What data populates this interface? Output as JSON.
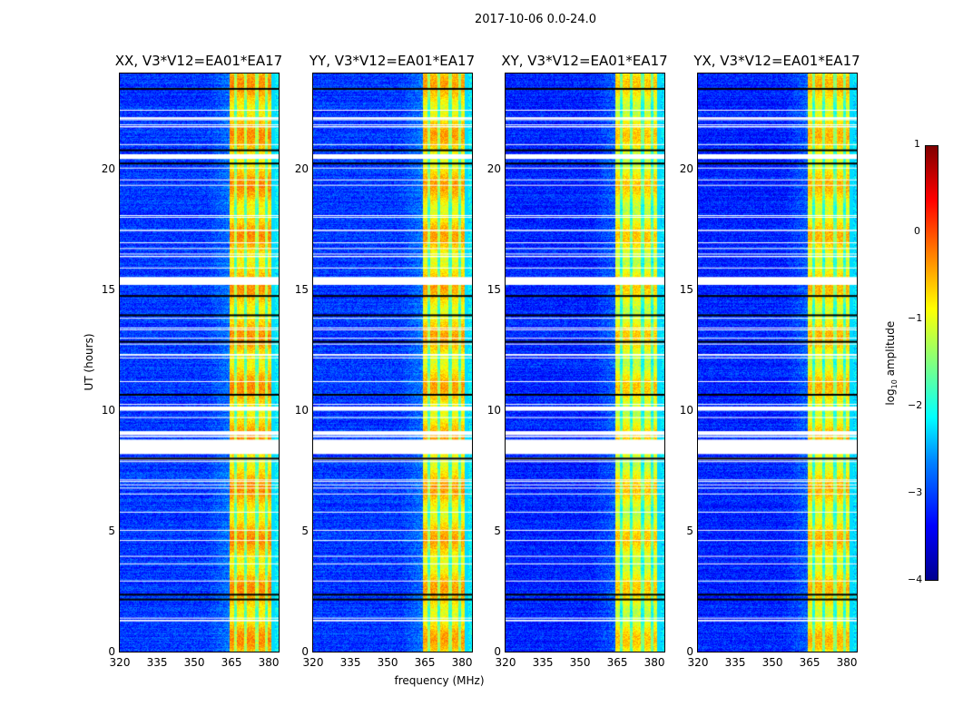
{
  "suptitle": "2017-10-06 0.0-24.0",
  "chart_data": {
    "type": "heatmap",
    "title": "2017-10-06 0.0-24.0",
    "xlabel": "frequency (MHz)",
    "ylabel": "UT (hours)",
    "xlim": [
      320,
      384
    ],
    "ylim": [
      0,
      24
    ],
    "xticks": [
      "320",
      "335",
      "350",
      "365",
      "380"
    ],
    "xtick_values": [
      320,
      335,
      350,
      365,
      380
    ],
    "yticks": [
      "0",
      "5",
      "10",
      "15",
      "20"
    ],
    "ytick_values": [
      0,
      5,
      10,
      15,
      20
    ],
    "panels": [
      {
        "title": "XX, V3*V12=EA01*EA17",
        "background_log_amp": -3.1,
        "band_log_amp": -0.6
      },
      {
        "title": "YY, V3*V12=EA01*EA17",
        "background_log_amp": -3.1,
        "band_log_amp": -0.7
      },
      {
        "title": "XY, V3*V12=EA01*EA17",
        "background_log_amp": -3.2,
        "band_log_amp": -0.9
      },
      {
        "title": "YX, V3*V12=EA01*EA17",
        "background_log_amp": -3.2,
        "band_log_amp": -0.8
      }
    ],
    "rfi_band_mhz": [
      364,
      381
    ],
    "flagged_hours": [
      [
        8.2,
        8.8
      ],
      [
        9.0,
        9.15
      ],
      [
        10.0,
        10.15
      ],
      [
        15.25,
        15.55
      ],
      [
        20.45,
        20.65
      ]
    ],
    "colorbar": {
      "label": "log10 amplitude",
      "label_main": "log",
      "label_sub": "10",
      "label_rest": " amplitude",
      "range": [
        -4,
        1
      ],
      "ticks": [
        "1",
        "0",
        "−1",
        "−2",
        "−3",
        "−4"
      ],
      "tick_values": [
        1,
        0,
        -1,
        -2,
        -3,
        -4
      ],
      "colormap": "jet"
    }
  }
}
